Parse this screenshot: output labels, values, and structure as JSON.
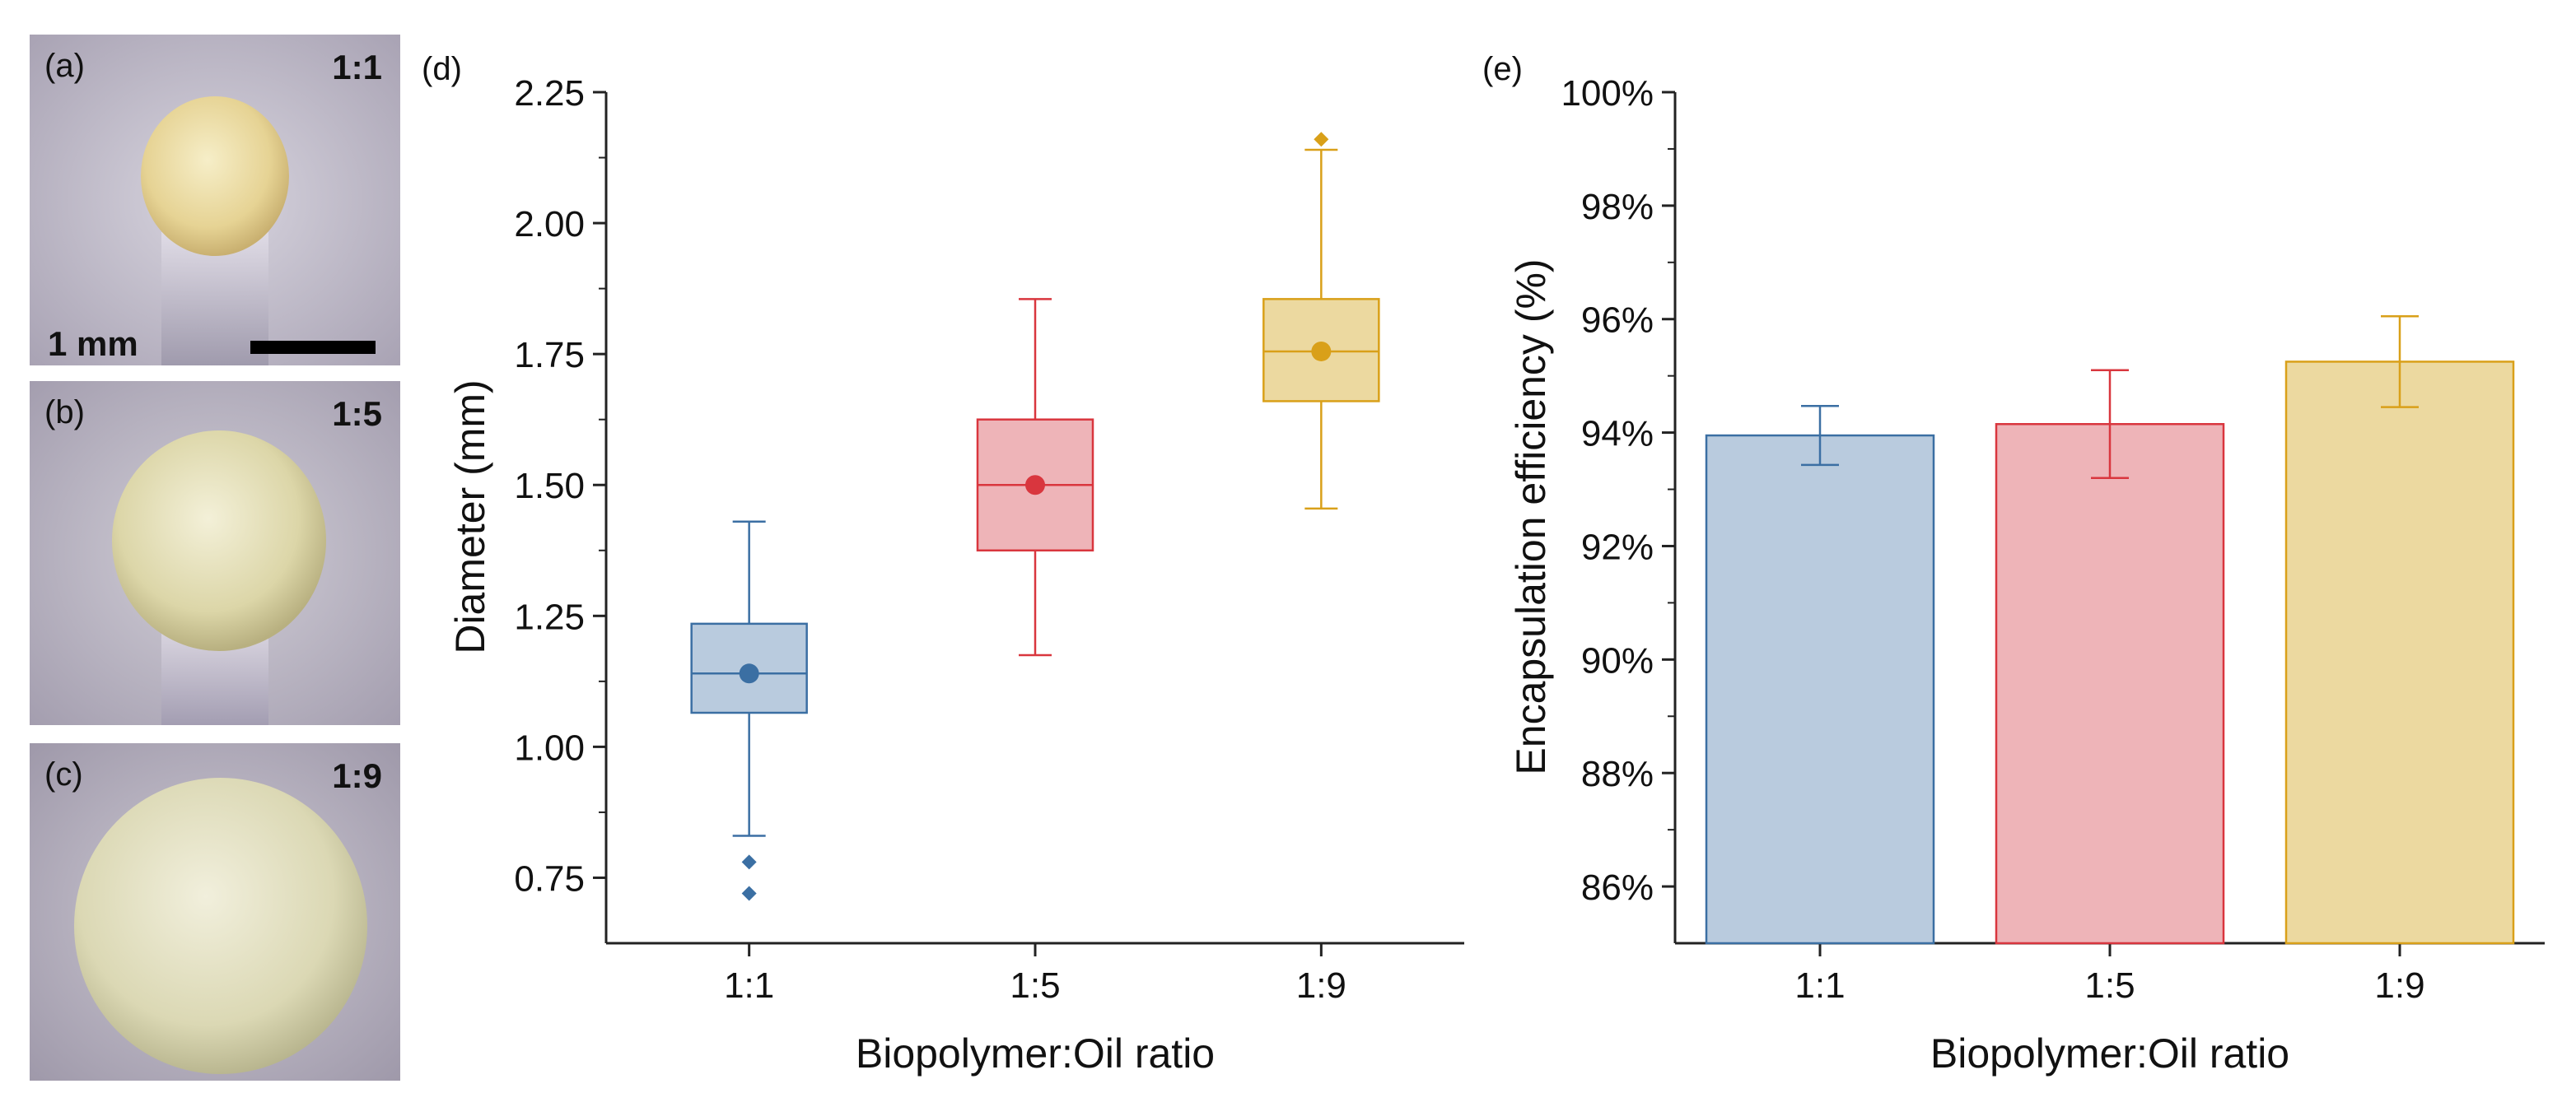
{
  "photos": [
    {
      "tag": "(a)",
      "ratio": "1:1",
      "scale_label": "1 mm"
    },
    {
      "tag": "(b)",
      "ratio": "1:5"
    },
    {
      "tag": "(c)",
      "ratio": "1:9"
    }
  ],
  "colors": {
    "blue": "#3b6fa3",
    "blue_fill": "#b9cbde",
    "red": "#d9363e",
    "red_fill": "#eeb4b8",
    "gold": "#d9a019",
    "gold_fill": "#ecd9a0"
  },
  "chart_data": [
    {
      "panel": "(d)",
      "type": "box",
      "title": "",
      "xlabel": "Biopolymer:Oil ratio",
      "ylabel": "Diameter (mm)",
      "categories": [
        "1:1",
        "1:5",
        "1:9"
      ],
      "ylim": [
        0.625,
        2.25
      ],
      "yticks": [
        "0.75",
        "1.00",
        "1.25",
        "1.50",
        "1.75",
        "2.00",
        "2.25"
      ],
      "boxes": [
        {
          "name": "1:1",
          "whisker_low": 0.83,
          "q1": 1.065,
          "median": 1.14,
          "q3": 1.235,
          "whisker_high": 1.43,
          "mean": 1.14,
          "outliers": [
            0.72,
            0.78
          ]
        },
        {
          "name": "1:5",
          "whisker_low": 1.175,
          "q1": 1.375,
          "median": 1.5,
          "q3": 1.625,
          "whisker_high": 1.855,
          "mean": 1.5,
          "outliers": []
        },
        {
          "name": "1:9",
          "whisker_low": 1.455,
          "q1": 1.66,
          "median": 1.755,
          "q3": 1.855,
          "whisker_high": 2.14,
          "mean": 1.755,
          "outliers": [
            2.16
          ]
        }
      ]
    },
    {
      "panel": "(e)",
      "type": "bar",
      "title": "",
      "xlabel": "Biopolymer:Oil ratio",
      "ylabel": "Encapsulation efficiency (%)",
      "categories": [
        "1:1",
        "1:5",
        "1:9"
      ],
      "values": [
        93.95,
        94.15,
        95.25
      ],
      "errors": [
        0.52,
        0.95,
        0.8
      ],
      "ylim": [
        85,
        100
      ],
      "yticks": [
        "86%",
        "88%",
        "90%",
        "92%",
        "94%",
        "96%",
        "98%",
        "100%"
      ]
    }
  ]
}
